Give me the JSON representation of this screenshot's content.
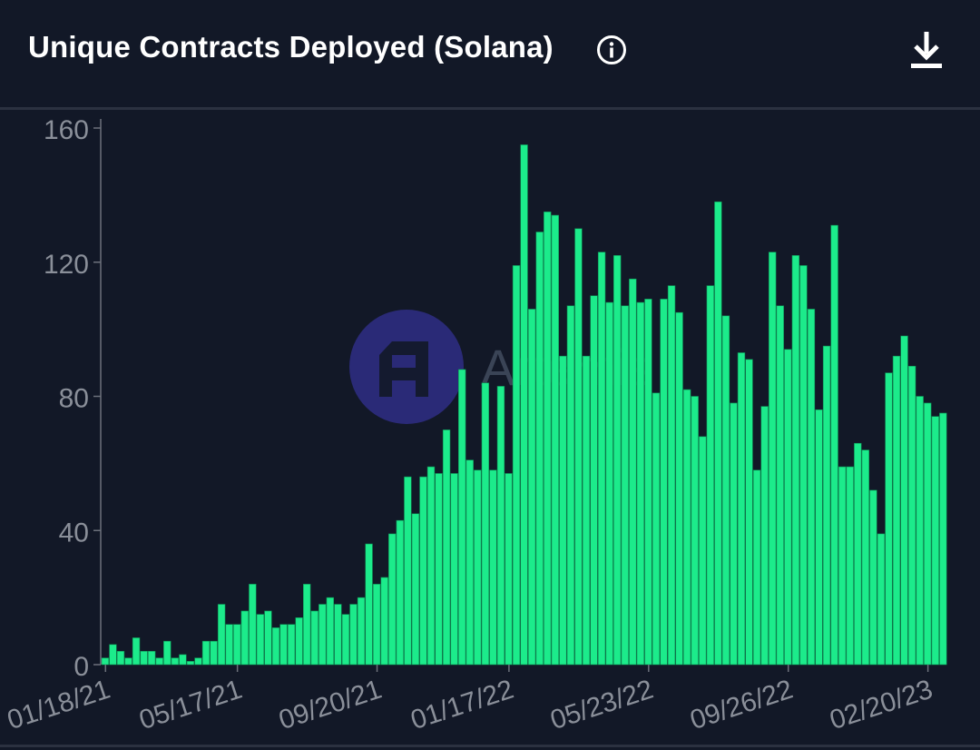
{
  "header": {
    "title": "Unique Contracts Deployed (Solana)",
    "info_icon": "info-circle-icon",
    "download_icon": "download-icon"
  },
  "watermark": {
    "text": "Artemis"
  },
  "colors": {
    "background": "#121827",
    "bar": "#1ceb8b",
    "bar_edge": "#0e8f54",
    "axis_text": "#8a8f99",
    "axis_line": "#6c717b"
  },
  "chart_data": {
    "type": "bar",
    "title": "Unique Contracts Deployed (Solana)",
    "xlabel": "",
    "ylabel": "",
    "ylim": [
      0,
      160
    ],
    "yticks": [
      0,
      40,
      80,
      120,
      160
    ],
    "grid": false,
    "legend": "none",
    "x_tick_labels": [
      "01/18/21",
      "05/17/21",
      "09/20/21",
      "01/17/22",
      "05/23/22",
      "09/26/22",
      "02/20/23"
    ],
    "x_tick_indices": [
      0,
      17,
      35,
      52,
      70,
      88,
      106
    ],
    "series": [
      {
        "values": [
          2,
          6,
          4,
          2,
          8,
          4,
          4,
          2,
          7,
          2,
          3,
          1,
          2,
          7,
          7,
          18,
          12,
          12,
          16,
          24,
          15,
          16,
          11,
          12,
          12,
          14,
          24,
          16,
          18,
          20,
          18,
          15,
          18,
          20,
          36,
          24,
          26,
          39,
          43,
          56,
          45,
          56,
          59,
          57,
          70,
          57,
          88,
          61,
          58,
          84,
          58,
          83,
          57,
          119,
          155,
          106,
          129,
          135,
          134,
          92,
          107,
          130,
          92,
          110,
          123,
          108,
          122,
          107,
          115,
          108,
          109,
          81,
          109,
          113,
          105,
          82,
          80,
          68,
          113,
          138,
          104,
          78,
          93,
          91,
          58,
          77,
          123,
          107,
          94,
          122,
          119,
          106,
          76,
          95,
          131,
          59,
          59,
          66,
          64,
          52,
          39,
          87,
          92,
          98,
          89,
          80,
          78,
          74,
          75
        ]
      }
    ]
  }
}
